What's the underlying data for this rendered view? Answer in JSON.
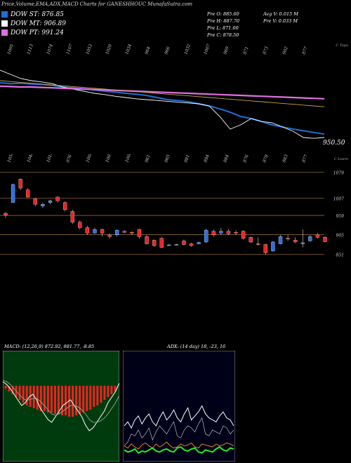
{
  "header": {
    "title": "Price,Volume,EMA,ADX,MACD Charts for GANESHHOUC MunafaSutra.com",
    "stats": {
      "open": "Pre O: 885.60",
      "high": "Pre H: 887.70",
      "low": "Pre L: 871.00",
      "close": "Pre C: 878.50",
      "avg_vol": "Avg V: 0.015 M",
      "pre_vol": "Pre V: 0.033 M"
    }
  },
  "legend": [
    {
      "label": "DOW ST: 876.85",
      "color": "#1e6fd6"
    },
    {
      "label": "DOW MT: 906.89",
      "color": "#ffffff"
    },
    {
      "label": "DOW PT: 991.24",
      "color": "#e070e0"
    }
  ],
  "top_labels": [
    "1095",
    "1113",
    "1074",
    "1107",
    "1053",
    "1020",
    "1034",
    "964",
    "966",
    "1032",
    "1007",
    "969",
    "871",
    "873",
    "902",
    "877"
  ],
  "top_right_tag": "C Topo",
  "price_badge": "950.50",
  "mid_labels": [
    "1050",
    "1048",
    "1012",
    "976",
    "1008",
    "1004",
    "1006",
    "961",
    "965",
    "981",
    "894",
    "884",
    "876",
    "878",
    "883",
    "877"
  ],
  "mid_right_tag": "C Learn",
  "chart_data": [
    {
      "type": "line",
      "title": "price-ema-panel",
      "series": [
        {
          "name": "",
          "color": "#1e6fd6",
          "values": [
            1010,
            1008,
            1009,
            1007,
            1006,
            1004,
            1000,
            998,
            996,
            993,
            990,
            988,
            985,
            983,
            980,
            975,
            970,
            968,
            965,
            960,
            955,
            948,
            940,
            930,
            925,
            918,
            910,
            905,
            900,
            896,
            892,
            888
          ]
        },
        {
          "name": "",
          "color": "#ffffff",
          "values": [
            1040,
            1030,
            1020,
            1015,
            1012,
            1008,
            1000,
            995,
            990,
            985,
            982,
            978,
            975,
            972,
            970,
            968,
            966,
            964,
            962,
            960,
            955,
            930,
            900,
            910,
            925,
            918,
            915,
            905,
            895,
            880,
            878,
            880
          ]
        },
        {
          "name": "",
          "color": "#e070e0",
          "values": [
            1002,
            1001,
            1000,
            1000,
            999,
            998,
            997,
            996,
            995,
            994,
            993,
            992,
            991,
            990,
            989,
            988,
            987,
            986,
            985,
            984,
            983,
            982,
            981,
            980,
            979,
            978,
            977,
            976,
            975,
            974,
            973,
            972
          ]
        },
        {
          "name": "",
          "color": "#c9a24a",
          "values": [
            1015,
            1013,
            1011,
            1009,
            1007,
            1005,
            1003,
            1001,
            999,
            997,
            995,
            993,
            991,
            989,
            987,
            985,
            983,
            981,
            979,
            977,
            975,
            973,
            971,
            969,
            967,
            965,
            963,
            961,
            959,
            957,
            955,
            953
          ]
        }
      ],
      "ylim": [
        860,
        1060
      ]
    },
    {
      "type": "bar",
      "title": "candles",
      "ylabels": [
        "1079",
        "1007",
        "959",
        "905",
        "851"
      ],
      "candles": [
        {
          "o": 965,
          "c": 960,
          "h": 968,
          "l": 952,
          "up": false
        },
        {
          "o": 995,
          "c": 1045,
          "h": 1048,
          "l": 995,
          "up": true
        },
        {
          "o": 1060,
          "c": 1035,
          "h": 1062,
          "l": 1030,
          "up": false
        },
        {
          "o": 1030,
          "c": 1010,
          "h": 1035,
          "l": 1008,
          "up": false
        },
        {
          "o": 1005,
          "c": 990,
          "h": 1008,
          "l": 985,
          "up": false
        },
        {
          "o": 990,
          "c": 985,
          "h": 995,
          "l": 980,
          "up": true
        },
        {
          "o": 995,
          "c": 1000,
          "h": 1002,
          "l": 990,
          "up": true
        },
        {
          "o": 1000,
          "c": 1010,
          "h": 1012,
          "l": 995,
          "up": false
        },
        {
          "o": 995,
          "c": 975,
          "h": 998,
          "l": 970,
          "up": false
        },
        {
          "o": 970,
          "c": 940,
          "h": 975,
          "l": 935,
          "up": false
        },
        {
          "o": 940,
          "c": 925,
          "h": 945,
          "l": 920,
          "up": false
        },
        {
          "o": 925,
          "c": 910,
          "h": 930,
          "l": 905,
          "up": false
        },
        {
          "o": 910,
          "c": 920,
          "h": 925,
          "l": 908,
          "up": true
        },
        {
          "o": 920,
          "c": 910,
          "h": 922,
          "l": 900,
          "up": false
        },
        {
          "o": 905,
          "c": 900,
          "h": 908,
          "l": 895,
          "up": false
        },
        {
          "o": 905,
          "c": 918,
          "h": 920,
          "l": 900,
          "up": true
        },
        {
          "o": 915,
          "c": 912,
          "h": 918,
          "l": 910,
          "up": false
        },
        {
          "o": 912,
          "c": 910,
          "h": 915,
          "l": 905,
          "up": false
        },
        {
          "o": 920,
          "c": 900,
          "h": 922,
          "l": 895,
          "up": false
        },
        {
          "o": 900,
          "c": 880,
          "h": 905,
          "l": 878,
          "up": false
        },
        {
          "o": 890,
          "c": 875,
          "h": 892,
          "l": 872,
          "up": false
        },
        {
          "o": 895,
          "c": 870,
          "h": 898,
          "l": 868,
          "up": false
        },
        {
          "o": 875,
          "c": 877,
          "h": 880,
          "l": 874,
          "up": true
        },
        {
          "o": 876,
          "c": 878,
          "h": 880,
          "l": 875,
          "up": true
        },
        {
          "o": 878,
          "c": 888,
          "h": 892,
          "l": 876,
          "up": false
        },
        {
          "o": 880,
          "c": 875,
          "h": 883,
          "l": 872,
          "up": false
        },
        {
          "o": 880,
          "c": 884,
          "h": 886,
          "l": 878,
          "up": true
        },
        {
          "o": 885,
          "c": 918,
          "h": 922,
          "l": 882,
          "up": true
        },
        {
          "o": 915,
          "c": 905,
          "h": 920,
          "l": 900,
          "up": false
        },
        {
          "o": 910,
          "c": 915,
          "h": 925,
          "l": 905,
          "up": true
        },
        {
          "o": 915,
          "c": 908,
          "h": 920,
          "l": 905,
          "up": false
        },
        {
          "o": 912,
          "c": 910,
          "h": 918,
          "l": 905,
          "up": false
        },
        {
          "o": 915,
          "c": 895,
          "h": 918,
          "l": 892,
          "up": false
        },
        {
          "o": 898,
          "c": 885,
          "h": 900,
          "l": 882,
          "up": false
        },
        {
          "o": 880,
          "c": 878,
          "h": 898,
          "l": 875,
          "up": false
        },
        {
          "o": 878,
          "c": 855,
          "h": 880,
          "l": 850,
          "up": false
        },
        {
          "o": 860,
          "c": 885,
          "h": 888,
          "l": 858,
          "up": true
        },
        {
          "o": 880,
          "c": 900,
          "h": 905,
          "l": 878,
          "up": true
        },
        {
          "o": 895,
          "c": 893,
          "h": 905,
          "l": 888,
          "up": false
        },
        {
          "o": 890,
          "c": 885,
          "h": 898,
          "l": 882,
          "up": false
        },
        {
          "o": 880,
          "c": 883,
          "h": 920,
          "l": 870,
          "up": true
        },
        {
          "o": 888,
          "c": 900,
          "h": 905,
          "l": 886,
          "up": true
        },
        {
          "o": 905,
          "c": 898,
          "h": 910,
          "l": 895,
          "up": false
        },
        {
          "o": 898,
          "c": 886,
          "h": 902,
          "l": 884,
          "up": false
        }
      ],
      "ylim": [
        840,
        1090
      ]
    },
    {
      "type": "bar",
      "title": "MACD",
      "header": "MACD: (12,26,9) 872.92, 881.77, -8.85",
      "histogram": [
        -2,
        -4,
        -6,
        -8,
        -10,
        -12,
        -14,
        -15,
        -16,
        -17,
        -18,
        -18,
        -19,
        -19,
        -20,
        -20,
        -21,
        -21,
        -22,
        -22,
        -21,
        -20,
        -19,
        -18,
        -17,
        -15,
        -14,
        -12,
        -10,
        -8,
        -6,
        -4
      ],
      "macd_line": [
        3,
        1,
        -2,
        -6,
        -10,
        -14,
        -12,
        -8,
        -6,
        -10,
        -16,
        -20,
        -24,
        -26,
        -22,
        -18,
        -14,
        -12,
        -10,
        -14,
        -18,
        -22,
        -28,
        -32,
        -30,
        -26,
        -22,
        -18,
        -12,
        -8,
        -4,
        2
      ],
      "signal_line": [
        4,
        3,
        1,
        -2,
        -5,
        -8,
        -10,
        -10,
        -9,
        -9,
        -11,
        -14,
        -17,
        -20,
        -21,
        -20,
        -18,
        -16,
        -14,
        -14,
        -15,
        -17,
        -20,
        -24,
        -26,
        -26,
        -25,
        -23,
        -20,
        -16,
        -12,
        -7
      ],
      "ylim": [
        -40,
        10
      ]
    },
    {
      "type": "line",
      "title": "ADX",
      "header": "ADX: (14 day) 18, -23, 16",
      "plus_di": [
        10,
        14,
        22,
        20,
        26,
        18,
        22,
        28,
        16,
        24,
        30,
        26,
        22,
        28,
        34,
        20,
        18,
        26,
        30,
        28,
        24,
        32,
        38,
        22,
        20,
        26,
        24,
        22,
        30,
        28,
        22,
        26
      ],
      "minus_di": [
        30,
        34,
        28,
        36,
        40,
        32,
        38,
        42,
        34,
        30,
        38,
        44,
        36,
        40,
        46,
        38,
        34,
        42,
        48,
        36,
        40,
        44,
        50,
        42,
        38,
        36,
        34,
        40,
        44,
        38,
        36,
        30
      ],
      "adx_orange": [
        10,
        8,
        12,
        9,
        7,
        11,
        13,
        10,
        8,
        12,
        9,
        11,
        14,
        10,
        8,
        9,
        12,
        10,
        11,
        13,
        9,
        8,
        12,
        11,
        10,
        9,
        12,
        10,
        11,
        13,
        12,
        10
      ],
      "adx_green": [
        6,
        4,
        5,
        7,
        3,
        5,
        4,
        6,
        8,
        5,
        4,
        6,
        7,
        5,
        4,
        8,
        9,
        6,
        5,
        7,
        8,
        4,
        3,
        6,
        5,
        4,
        7,
        9,
        6,
        5,
        8,
        7
      ],
      "ylim": [
        0,
        70
      ]
    }
  ]
}
